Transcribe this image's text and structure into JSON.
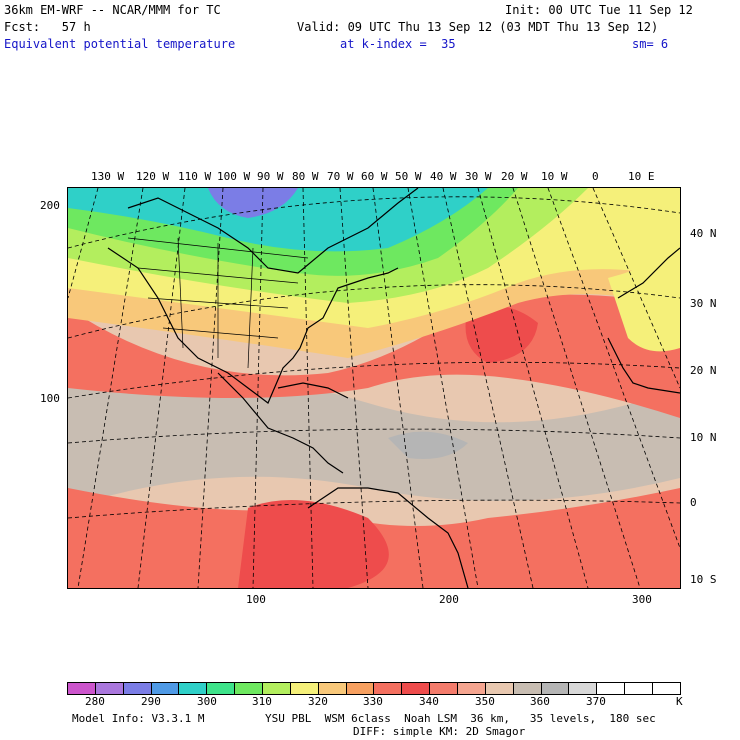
{
  "header": {
    "model_line": "36km EM-WRF -- NCAR/MMM for TC",
    "init_line": "Init: 00 UTC Tue 11 Sep 12",
    "fcst_line": "Fcst:   57 h",
    "valid_line": "Valid: 09 UTC Thu 13 Sep 12 (03 MDT Thu 13 Sep 12)",
    "field_name": "Equivalent potential temperature",
    "level": "at k-index =  35",
    "smoothing": "sm= 6"
  },
  "map": {
    "lon_labels": [
      "130 W",
      "120 W",
      "110 W",
      "100 W",
      "90 W",
      "80 W",
      "70 W",
      "60 W",
      "50 W",
      "40 W",
      "30 W",
      "20 W",
      "10 W",
      "0",
      "10 E"
    ],
    "lat_labels": [
      "40 N",
      "30 N",
      "20 N",
      "10 N",
      "0",
      "10 S"
    ],
    "y_grid_labels": [
      "200",
      "100"
    ],
    "x_grid_labels": [
      "100",
      "200",
      "300"
    ]
  },
  "colorbar": {
    "colors": [
      "#cc55cc",
      "#aa77dd",
      "#7b7de6",
      "#4f9ae6",
      "#2fd0c8",
      "#3ee38a",
      "#6ee860",
      "#b3ee5e",
      "#f5f07a",
      "#f8c87a",
      "#f7a060",
      "#f47060",
      "#ee4c4c",
      "#f47c6c",
      "#f5a590",
      "#e8c8b0",
      "#c8bdb2",
      "#b5b5b5",
      "#d8d8d8",
      "#ffffff",
      "#ffffff",
      "#ffffff"
    ],
    "labels": [
      "280",
      "290",
      "300",
      "310",
      "320",
      "330",
      "340",
      "350",
      "360",
      "370"
    ],
    "unit": "K"
  },
  "footer": {
    "model_info": "Model Info: V3.3.1 M",
    "physics": "YSU PBL  WSM 6class  Noah LSM  36 km,   35 levels,  180 sec",
    "diffusion": "DIFF: simple KM: 2D Smagor"
  }
}
